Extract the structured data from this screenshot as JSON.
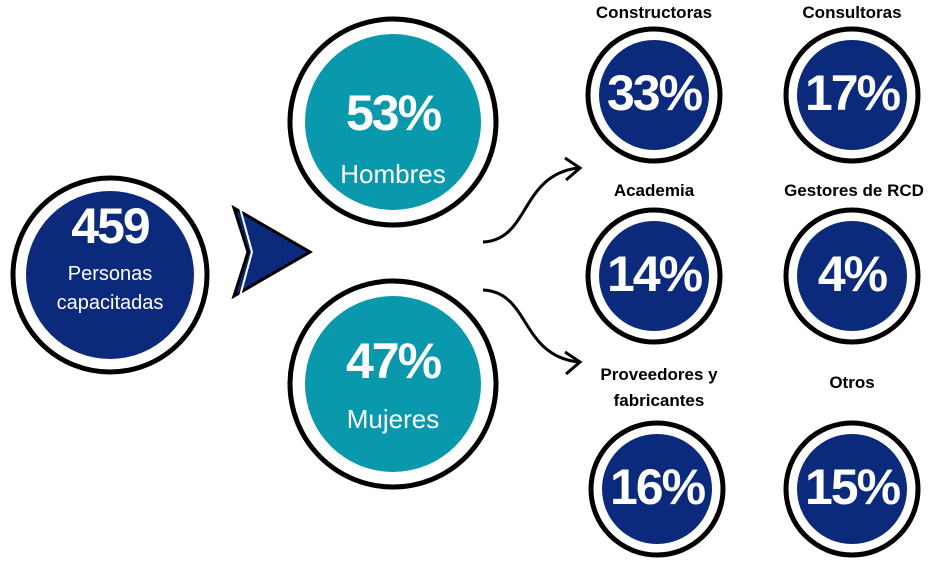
{
  "total": {
    "value": "459",
    "label": "Personas capacitadas"
  },
  "gender": [
    {
      "value": "53%",
      "label": "Hombres"
    },
    {
      "value": "47%",
      "label": "Mujeres"
    }
  ],
  "sectors": [
    {
      "label": "Constructoras",
      "value": "33%"
    },
    {
      "label": "Consultoras",
      "value": "17%"
    },
    {
      "label": "Academia",
      "value": "14%"
    },
    {
      "label": "Gestores de RCD",
      "value": "4%"
    },
    {
      "label": "Proveedores y fabricantes",
      "value": "16%"
    },
    {
      "label": "Otros",
      "value": "15%"
    }
  ]
}
